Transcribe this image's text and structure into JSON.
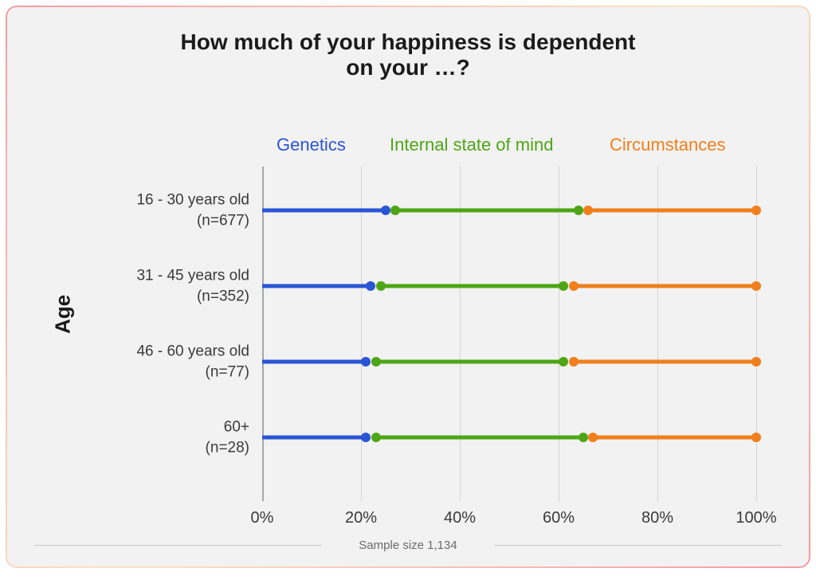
{
  "chart": {
    "type": "stacked-horizontal-bar",
    "title": "How much of your happiness is dependent\non your …?",
    "title_fontsize": 28,
    "y_axis_title": "Age",
    "y_axis_title_fontsize": 26,
    "footnote": "Sample size 1,134",
    "footnote_fontsize": 15,
    "background_color": "#f2f2f2",
    "card_border_gradient": [
      "#f79aa3",
      "#fce3c8",
      "#f79aa3"
    ],
    "xlim": [
      0,
      100
    ],
    "xtick_step": 20,
    "xtick_format_suffix": "%",
    "ticks": [
      0,
      20,
      40,
      60,
      80,
      100
    ],
    "tick_fontsize": 20,
    "label_fontsize": 19,
    "grid_color": "#d4d4d4",
    "axis_color": "#a8a8a8",
    "line_width": 5,
    "dot_diameter": 12,
    "legend": {
      "fontsize": 22,
      "items": [
        {
          "label": "Genetics",
          "color": "#2a55d4",
          "x": 338
        },
        {
          "label": "Internal state of mind",
          "color": "#4ea516",
          "x": 480
        },
        {
          "label": "Circumstances",
          "color": "#f07f1c",
          "x": 756
        }
      ]
    },
    "series_colors": {
      "genetics": "#2a55d4",
      "internal_state": "#4ea516",
      "circumstances": "#f07f1c"
    },
    "row_spacing": 95,
    "first_row_top": 55,
    "rows": [
      {
        "label_line1": "16 - 30 years old",
        "label_line2": "(n=677)",
        "segments": [
          {
            "series": "genetics",
            "from": 0,
            "to": 25
          },
          {
            "series": "internal_state",
            "from": 27,
            "to": 64
          },
          {
            "series": "circumstances",
            "from": 66,
            "to": 100
          }
        ]
      },
      {
        "label_line1": "31 - 45 years old",
        "label_line2": "(n=352)",
        "segments": [
          {
            "series": "genetics",
            "from": 0,
            "to": 22
          },
          {
            "series": "internal_state",
            "from": 24,
            "to": 61
          },
          {
            "series": "circumstances",
            "from": 63,
            "to": 100
          }
        ]
      },
      {
        "label_line1": "46 - 60 years old",
        "label_line2": "(n=77)",
        "segments": [
          {
            "series": "genetics",
            "from": 0,
            "to": 21
          },
          {
            "series": "internal_state",
            "from": 23,
            "to": 61
          },
          {
            "series": "circumstances",
            "from": 63,
            "to": 100
          }
        ]
      },
      {
        "label_line1": "60+",
        "label_line2": "(n=28)",
        "segments": [
          {
            "series": "genetics",
            "from": 0,
            "to": 21
          },
          {
            "series": "internal_state",
            "from": 23,
            "to": 65
          },
          {
            "series": "circumstances",
            "from": 67,
            "to": 100
          }
        ]
      }
    ]
  }
}
